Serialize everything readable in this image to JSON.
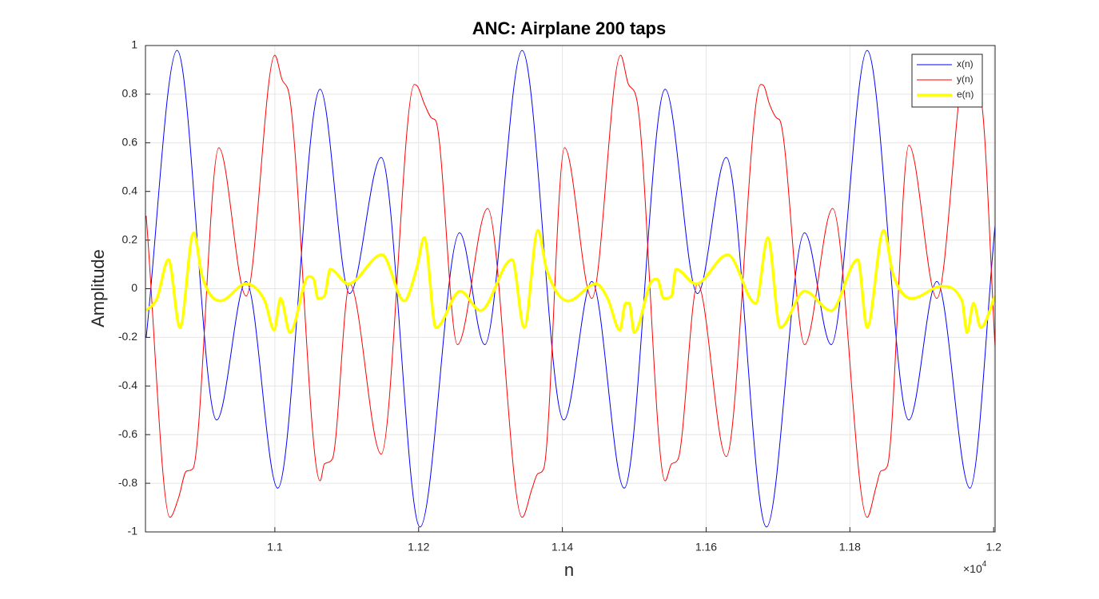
{
  "chart_data": {
    "type": "line",
    "title": "ANC: Airplane 200 taps",
    "xlabel": "n",
    "ylabel": "Amplitude",
    "x_multiplier": {
      "base": "×10",
      "exponent": "4"
    },
    "xlim": [
      10820,
      12002
    ],
    "ylim": [
      -1,
      1
    ],
    "xticks": [
      {
        "value": 11000,
        "label": "1.1"
      },
      {
        "value": 11200,
        "label": "1.12"
      },
      {
        "value": 11400,
        "label": "1.14"
      },
      {
        "value": 11600,
        "label": "1.16"
      },
      {
        "value": 11800,
        "label": "1.18"
      },
      {
        "value": 12000,
        "label": "1.2"
      }
    ],
    "yticks": [
      -1,
      -0.8,
      -0.6,
      -0.4,
      -0.2,
      0,
      0.2,
      0.4,
      0.6,
      0.8,
      1
    ],
    "grid": true,
    "legend": "top-right",
    "series": [
      {
        "name": "x(n)",
        "color": "#0000ff",
        "width": 1,
        "x": [
          10821,
          10864,
          10919,
          10960,
          11004,
          11063,
          11104,
          11148,
          11202,
          11257,
          11292,
          11344,
          11402,
          11441,
          11486,
          11543,
          11588,
          11628,
          11684,
          11737,
          11774,
          11824,
          11882,
          11921,
          11967,
          12002
        ],
        "values": [
          -0.2,
          0.98,
          -0.54,
          0.03,
          -0.82,
          0.82,
          -0.02,
          0.54,
          -0.98,
          0.23,
          -0.23,
          0.98,
          -0.54,
          0.03,
          -0.82,
          0.82,
          -0.02,
          0.54,
          -0.98,
          0.23,
          -0.23,
          0.98,
          -0.54,
          0.03,
          -0.82,
          0.26
        ]
      },
      {
        "name": "y(n)",
        "color": "#ff0000",
        "width": 1,
        "x": [
          10821,
          10854,
          10866,
          10877,
          10886,
          10922,
          10960,
          11000,
          11010,
          11021,
          11063,
          11069,
          11080,
          11104,
          11148,
          11194,
          11199,
          11208,
          11219,
          11224,
          11254,
          11296,
          11344,
          11358,
          11366,
          11374,
          11403,
          11441,
          11481,
          11492,
          11504,
          11543,
          11552,
          11561,
          11588,
          11628,
          11676,
          11681,
          11688,
          11699,
          11703,
          11737,
          11776,
          11824,
          11836,
          11843,
          11852,
          11882,
          11921,
          11963,
          11972,
          11983,
          12002
        ],
        "values": [
          0.3,
          -0.94,
          -0.86,
          -0.75,
          -0.74,
          0.58,
          -0.03,
          0.96,
          0.86,
          0.78,
          -0.79,
          -0.72,
          -0.7,
          0.02,
          -0.68,
          0.84,
          0.83,
          0.76,
          0.7,
          0.69,
          -0.23,
          0.33,
          -0.94,
          -0.82,
          -0.76,
          -0.74,
          0.58,
          -0.04,
          0.96,
          0.84,
          0.77,
          -0.79,
          -0.72,
          -0.7,
          0.02,
          -0.69,
          0.84,
          0.83,
          0.76,
          0.7,
          0.69,
          -0.23,
          0.33,
          -0.94,
          -0.82,
          -0.75,
          -0.73,
          0.59,
          -0.04,
          0.96,
          0.84,
          0.77,
          -0.24
        ]
      },
      {
        "name": "e(n)",
        "color": "#ffff00",
        "width": 3.5,
        "x": [
          10821,
          10836,
          10852,
          10868,
          10887,
          10899,
          10924,
          10960,
          10986,
          10999,
          11008,
          11021,
          11047,
          11054,
          11060,
          11069,
          11077,
          11102,
          11149,
          11180,
          11197,
          11208,
          11224,
          11258,
          11286,
          11330,
          11347,
          11366,
          11378,
          11408,
          11447,
          11463,
          11480,
          11488,
          11493,
          11500,
          11524,
          11532,
          11541,
          11552,
          11558,
          11586,
          11630,
          11669,
          11686,
          11703,
          11737,
          11774,
          11811,
          11824,
          11847,
          11860,
          11886,
          11928,
          11956,
          11963,
          11972,
          11982,
          12002
        ],
        "values": [
          -0.09,
          -0.04,
          0.12,
          -0.16,
          0.23,
          0.05,
          -0.05,
          0.02,
          -0.05,
          -0.17,
          -0.04,
          -0.18,
          0.05,
          0.04,
          -0.04,
          -0.03,
          0.08,
          0.02,
          0.14,
          -0.05,
          0.08,
          0.21,
          -0.16,
          -0.01,
          -0.09,
          0.12,
          -0.16,
          0.24,
          0.08,
          -0.05,
          0.02,
          -0.04,
          -0.17,
          -0.06,
          -0.06,
          -0.18,
          0.03,
          0.04,
          -0.04,
          -0.03,
          0.08,
          0.02,
          0.14,
          -0.06,
          0.21,
          -0.16,
          -0.01,
          -0.09,
          0.12,
          -0.16,
          0.24,
          0.06,
          -0.04,
          0.01,
          -0.05,
          -0.18,
          -0.06,
          -0.16,
          -0.03
        ]
      }
    ]
  }
}
